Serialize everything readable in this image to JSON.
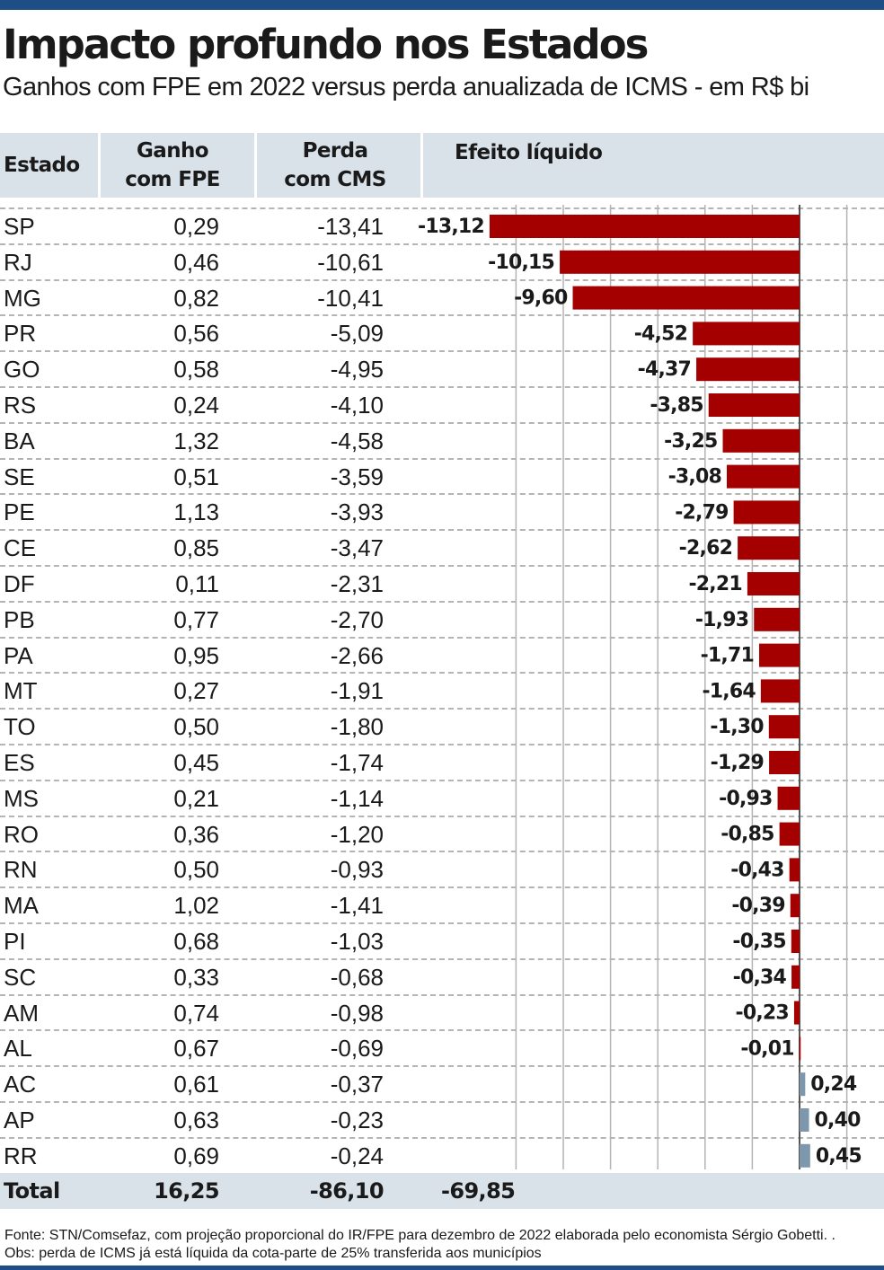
{
  "title": "Impacto profundo nos Estados",
  "subtitle": "Ganhos com FPE em 2022 versus perda anualizada de ICMS - em R$ bi",
  "columns": {
    "estado": "Estado",
    "ganho_l1": "Ganho",
    "ganho_l2": "com FPE",
    "perda_l1": "Perda",
    "perda_l2": "com CMS",
    "efeito": "Efeito líquido"
  },
  "rows": [
    {
      "uf": "SP",
      "ganho": "0,29",
      "perda": "-13,41",
      "efeito": "-13,12"
    },
    {
      "uf": "RJ",
      "ganho": "0,46",
      "perda": "-10,61",
      "efeito": "-10,15"
    },
    {
      "uf": "MG",
      "ganho": "0,82",
      "perda": "-10,41",
      "efeito": "-9,60"
    },
    {
      "uf": "PR",
      "ganho": "0,56",
      "perda": "-5,09",
      "efeito": "-4,52"
    },
    {
      "uf": "GO",
      "ganho": "0,58",
      "perda": "-4,95",
      "efeito": "-4,37"
    },
    {
      "uf": "RS",
      "ganho": "0,24",
      "perda": "-4,10",
      "efeito": "-3,85"
    },
    {
      "uf": "BA",
      "ganho": "1,32",
      "perda": "-4,58",
      "efeito": "-3,25"
    },
    {
      "uf": "SE",
      "ganho": "0,51",
      "perda": "-3,59",
      "efeito": "-3,08"
    },
    {
      "uf": "PE",
      "ganho": "1,13",
      "perda": "-3,93",
      "efeito": "-2,79"
    },
    {
      "uf": "CE",
      "ganho": "0,85",
      "perda": "-3,47",
      "efeito": "-2,62"
    },
    {
      "uf": "DF",
      "ganho": "0,11",
      "perda": "-2,31",
      "efeito": "-2,21"
    },
    {
      "uf": "PB",
      "ganho": "0,77",
      "perda": "-2,70",
      "efeito": "-1,93"
    },
    {
      "uf": "PA",
      "ganho": "0,95",
      "perda": "-2,66",
      "efeito": "-1,71"
    },
    {
      "uf": "MT",
      "ganho": "0,27",
      "perda": "-1,91",
      "efeito": "-1,64"
    },
    {
      "uf": "TO",
      "ganho": "0,50",
      "perda": "-1,80",
      "efeito": "-1,30"
    },
    {
      "uf": "ES",
      "ganho": "0,45",
      "perda": "-1,74",
      "efeito": "-1,29"
    },
    {
      "uf": "MS",
      "ganho": "0,21",
      "perda": "-1,14",
      "efeito": "-0,93"
    },
    {
      "uf": "RO",
      "ganho": "0,36",
      "perda": "-1,20",
      "efeito": "-0,85"
    },
    {
      "uf": "RN",
      "ganho": "0,50",
      "perda": "-0,93",
      "efeito": "-0,43"
    },
    {
      "uf": "MA",
      "ganho": "1,02",
      "perda": "-1,41",
      "efeito": "-0,39"
    },
    {
      "uf": "PI",
      "ganho": "0,68",
      "perda": "-1,03",
      "efeito": "-0,35"
    },
    {
      "uf": "SC",
      "ganho": "0,33",
      "perda": "-0,68",
      "efeito": "-0,34"
    },
    {
      "uf": "AM",
      "ganho": "0,74",
      "perda": "-0,98",
      "efeito": "-0,23"
    },
    {
      "uf": "AL",
      "ganho": "0,67",
      "perda": "-0,69",
      "efeito": "-0,01"
    },
    {
      "uf": "AC",
      "ganho": "0,61",
      "perda": "-0,37",
      "efeito": "0,24"
    },
    {
      "uf": "AP",
      "ganho": "0,63",
      "perda": "-0,23",
      "efeito": "0,40"
    },
    {
      "uf": "RR",
      "ganho": "0,69",
      "perda": "-0,24",
      "efeito": "0,45"
    }
  ],
  "total": {
    "label": "Total",
    "ganho": "16,25",
    "perda": "-86,10",
    "efeito": "-69,85"
  },
  "footer": {
    "fonte": "Fonte: STN/Comsefaz, com projeção proporcional do IR/FPE para dezembro de 2022 elaborada pelo economista Sérgio Gobetti. .",
    "obs": "Obs: perda de ICMS já está líquida da cota-parte de 25% transferida aos municípios"
  },
  "colors": {
    "negative": "#a50000",
    "positive": "#7f97ad",
    "header_band": "#d9e1e9",
    "rule": "#1d4f86",
    "grid": "#b4b4b4"
  },
  "chart_data": {
    "type": "bar",
    "orientation": "horizontal",
    "categories": [
      "SP",
      "RJ",
      "MG",
      "PR",
      "GO",
      "RS",
      "BA",
      "SE",
      "PE",
      "CE",
      "DF",
      "PB",
      "PA",
      "MT",
      "TO",
      "ES",
      "MS",
      "RO",
      "RN",
      "MA",
      "PI",
      "SC",
      "AM",
      "AL",
      "AC",
      "AP",
      "RR"
    ],
    "series": [
      {
        "name": "Efeito líquido",
        "values": [
          -13.12,
          -10.15,
          -9.6,
          -4.52,
          -4.37,
          -3.85,
          -3.25,
          -3.08,
          -2.79,
          -2.62,
          -2.21,
          -1.93,
          -1.71,
          -1.64,
          -1.3,
          -1.29,
          -0.93,
          -0.85,
          -0.43,
          -0.39,
          -0.35,
          -0.34,
          -0.23,
          -0.01,
          0.24,
          0.4,
          0.45
        ]
      }
    ],
    "labels": [
      "-13,12",
      "-10,15",
      "-9,60",
      "-4,52",
      "-4,37",
      "-3,85",
      "-3,25",
      "-3,08",
      "-2,79",
      "-2,62",
      "-2,21",
      "-1,93",
      "-1,71",
      "-1,64",
      "-1,30",
      "-1,29",
      "-0,93",
      "-0,85",
      "-0,43",
      "-0,39",
      "-0,35",
      "-0,34",
      "-0,23",
      "-0,01",
      "0,24",
      "0,40",
      "0,45"
    ],
    "xlim": [
      -14,
      2
    ],
    "gridlines": [
      -12,
      -10,
      -8,
      -6,
      -4,
      -2,
      0,
      2
    ],
    "grid": true,
    "legend": "none"
  }
}
